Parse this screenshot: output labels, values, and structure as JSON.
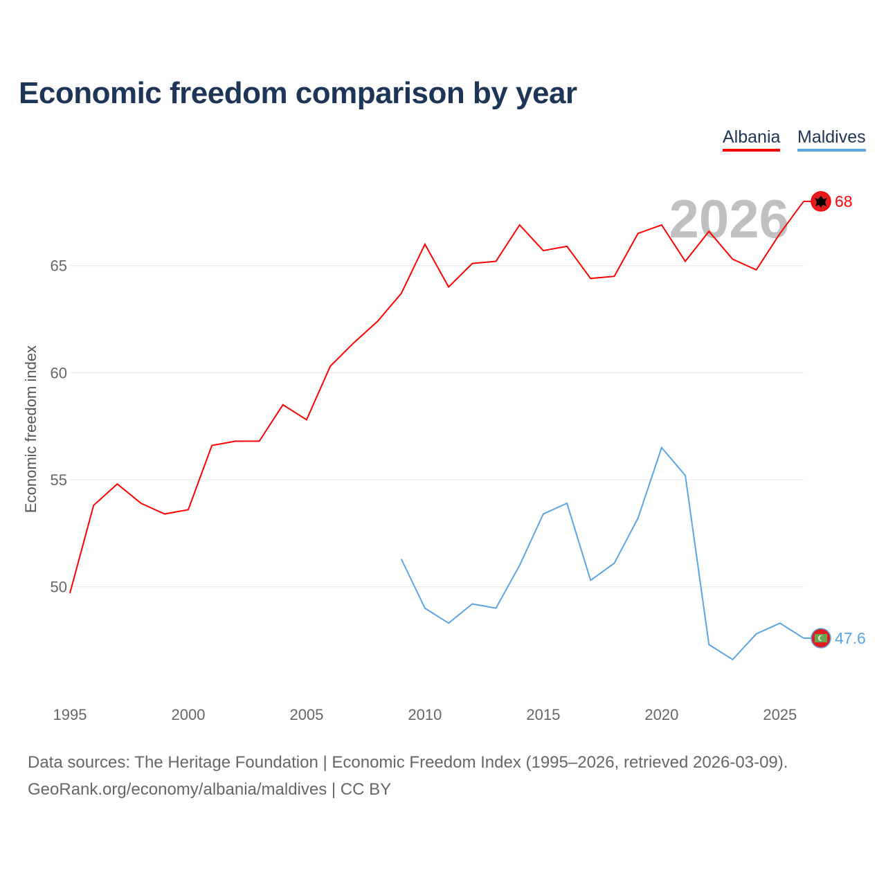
{
  "title": "Economic freedom comparison by year",
  "year_label": "2026",
  "footer": {
    "line1": "Data sources: The Heritage Foundation | Economic Freedom Index (1995–2026, retrieved 2026-03-09).",
    "line2": "GeoRank.org/economy/albania/maldives | CC BY"
  },
  "chart_data": {
    "type": "line",
    "title": "Economic freedom comparison by year",
    "xlabel": "",
    "ylabel": "Economic freedom index",
    "xlim": [
      1995,
      2026
    ],
    "ylim": [
      45.4,
      69
    ],
    "xticks": [
      1995,
      2000,
      2005,
      2010,
      2015,
      2020,
      2025
    ],
    "yticks": [
      50,
      55,
      60,
      65
    ],
    "grid": true,
    "legend_position": "top-right",
    "series": [
      {
        "name": "Albania",
        "color": "#ff0000",
        "end_label": "68",
        "flag_icon": "albania-flag",
        "x": [
          1995,
          1996,
          1997,
          1998,
          1999,
          2000,
          2001,
          2002,
          2003,
          2004,
          2005,
          2006,
          2007,
          2008,
          2009,
          2010,
          2011,
          2012,
          2013,
          2014,
          2015,
          2016,
          2017,
          2018,
          2019,
          2020,
          2021,
          2022,
          2023,
          2024,
          2025,
          2026
        ],
        "values": [
          49.7,
          53.8,
          54.8,
          53.9,
          53.4,
          53.6,
          56.6,
          56.8,
          56.8,
          58.5,
          57.8,
          60.3,
          61.4,
          62.4,
          63.7,
          66.0,
          64.0,
          65.1,
          65.2,
          66.9,
          65.7,
          65.9,
          64.4,
          64.5,
          66.5,
          66.9,
          65.2,
          66.6,
          65.3,
          64.8,
          66.5,
          68.0
        ]
      },
      {
        "name": "Maldives",
        "color": "#5aa5e6",
        "end_label": "47.6",
        "flag_icon": "maldives-flag",
        "x": [
          2009,
          2010,
          2011,
          2012,
          2013,
          2014,
          2015,
          2016,
          2017,
          2018,
          2019,
          2020,
          2021,
          2022,
          2023,
          2024,
          2025,
          2026
        ],
        "values": [
          51.3,
          49.0,
          48.3,
          49.2,
          49.0,
          51.0,
          53.4,
          53.9,
          50.3,
          51.1,
          53.2,
          56.5,
          55.2,
          47.3,
          46.6,
          47.8,
          48.3,
          47.6
        ]
      }
    ]
  }
}
